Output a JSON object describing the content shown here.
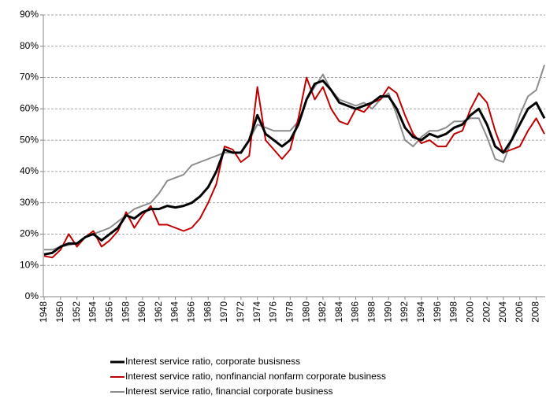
{
  "chart_data": {
    "type": "line",
    "x": [
      1948,
      1949,
      1950,
      1951,
      1952,
      1953,
      1954,
      1955,
      1956,
      1957,
      1958,
      1959,
      1960,
      1961,
      1962,
      1963,
      1964,
      1965,
      1966,
      1967,
      1968,
      1969,
      1970,
      1971,
      1972,
      1973,
      1974,
      1975,
      1976,
      1977,
      1978,
      1979,
      1980,
      1981,
      1982,
      1983,
      1984,
      1985,
      1986,
      1987,
      1988,
      1989,
      1990,
      1991,
      1992,
      1993,
      1994,
      1995,
      1996,
      1997,
      1998,
      1999,
      2000,
      2001,
      2002,
      2003,
      2004,
      2005,
      2006,
      2007,
      2008,
      2009
    ],
    "series": [
      {
        "name": "Interest service ratio, corporate busisness",
        "color": "#000000",
        "width": 3,
        "values": [
          13.5,
          14,
          16,
          17,
          17,
          19,
          20,
          18,
          20,
          22,
          26,
          25,
          27,
          28,
          28,
          29,
          28.5,
          29,
          30,
          32,
          35,
          40,
          47,
          46,
          46,
          50,
          58,
          52,
          50,
          48,
          50,
          55,
          63,
          68,
          69,
          66,
          62,
          61,
          60,
          61,
          62,
          64,
          64,
          60,
          54,
          51,
          50,
          52,
          51,
          52,
          54,
          55,
          58,
          60,
          55,
          48,
          46,
          50,
          55,
          60,
          62,
          57
        ]
      },
      {
        "name": "Interest service ratio, nonfinancial nonfarm corporate business",
        "color": "#c00000",
        "width": 2,
        "values": [
          13,
          12.5,
          15,
          20,
          16,
          19,
          21,
          16,
          18,
          21,
          27,
          22,
          26,
          29,
          23,
          23,
          22,
          21,
          22,
          25,
          30,
          36,
          48,
          47,
          43,
          45,
          67,
          50,
          47,
          44,
          47,
          57,
          70,
          63,
          67,
          60,
          56,
          55,
          60,
          59,
          62,
          63,
          67,
          65,
          58,
          52,
          49,
          50,
          48,
          48,
          52,
          53,
          60,
          65,
          62,
          53,
          46,
          47,
          48,
          53,
          57,
          52
        ]
      },
      {
        "name": "Interest service ratio, financial corporate business",
        "color": "#8c8c8c",
        "width": 2,
        "values": [
          15,
          15,
          16,
          16.5,
          17,
          19,
          20,
          21,
          22,
          24,
          26,
          28,
          29,
          30,
          33,
          37,
          38,
          39,
          42,
          43,
          44,
          45,
          46,
          46,
          46,
          50,
          55,
          54,
          53,
          53,
          53,
          56,
          63,
          67,
          71,
          66,
          63,
          62,
          61,
          62,
          60,
          63,
          65,
          58,
          50,
          48,
          51,
          53,
          53,
          54,
          56,
          56,
          57,
          57,
          51,
          44,
          43,
          50,
          58,
          64,
          66,
          74
        ]
      }
    ],
    "xlim": [
      1947.9,
      2009.1
    ],
    "xticks": [
      1948,
      1950,
      1952,
      1954,
      1956,
      1958,
      1960,
      1962,
      1964,
      1966,
      1968,
      1970,
      1972,
      1974,
      1976,
      1978,
      1980,
      1982,
      1984,
      1986,
      1988,
      1990,
      1992,
      1994,
      1996,
      1998,
      2000,
      2002,
      2004,
      2006,
      2008
    ],
    "ylim": [
      0,
      90
    ],
    "yticks": [
      {
        "value": 0,
        "label": "0%"
      },
      {
        "value": 10,
        "label": "10%"
      },
      {
        "value": 20,
        "label": "20%"
      },
      {
        "value": 30,
        "label": "30%"
      },
      {
        "value": 40,
        "label": "40%"
      },
      {
        "value": 50,
        "label": "50%"
      },
      {
        "value": 60,
        "label": "60%"
      },
      {
        "value": 70,
        "label": "70%"
      },
      {
        "value": 80,
        "label": "80%"
      },
      {
        "value": 90,
        "label": "90%"
      }
    ],
    "grid": true,
    "legend": "bottom"
  }
}
